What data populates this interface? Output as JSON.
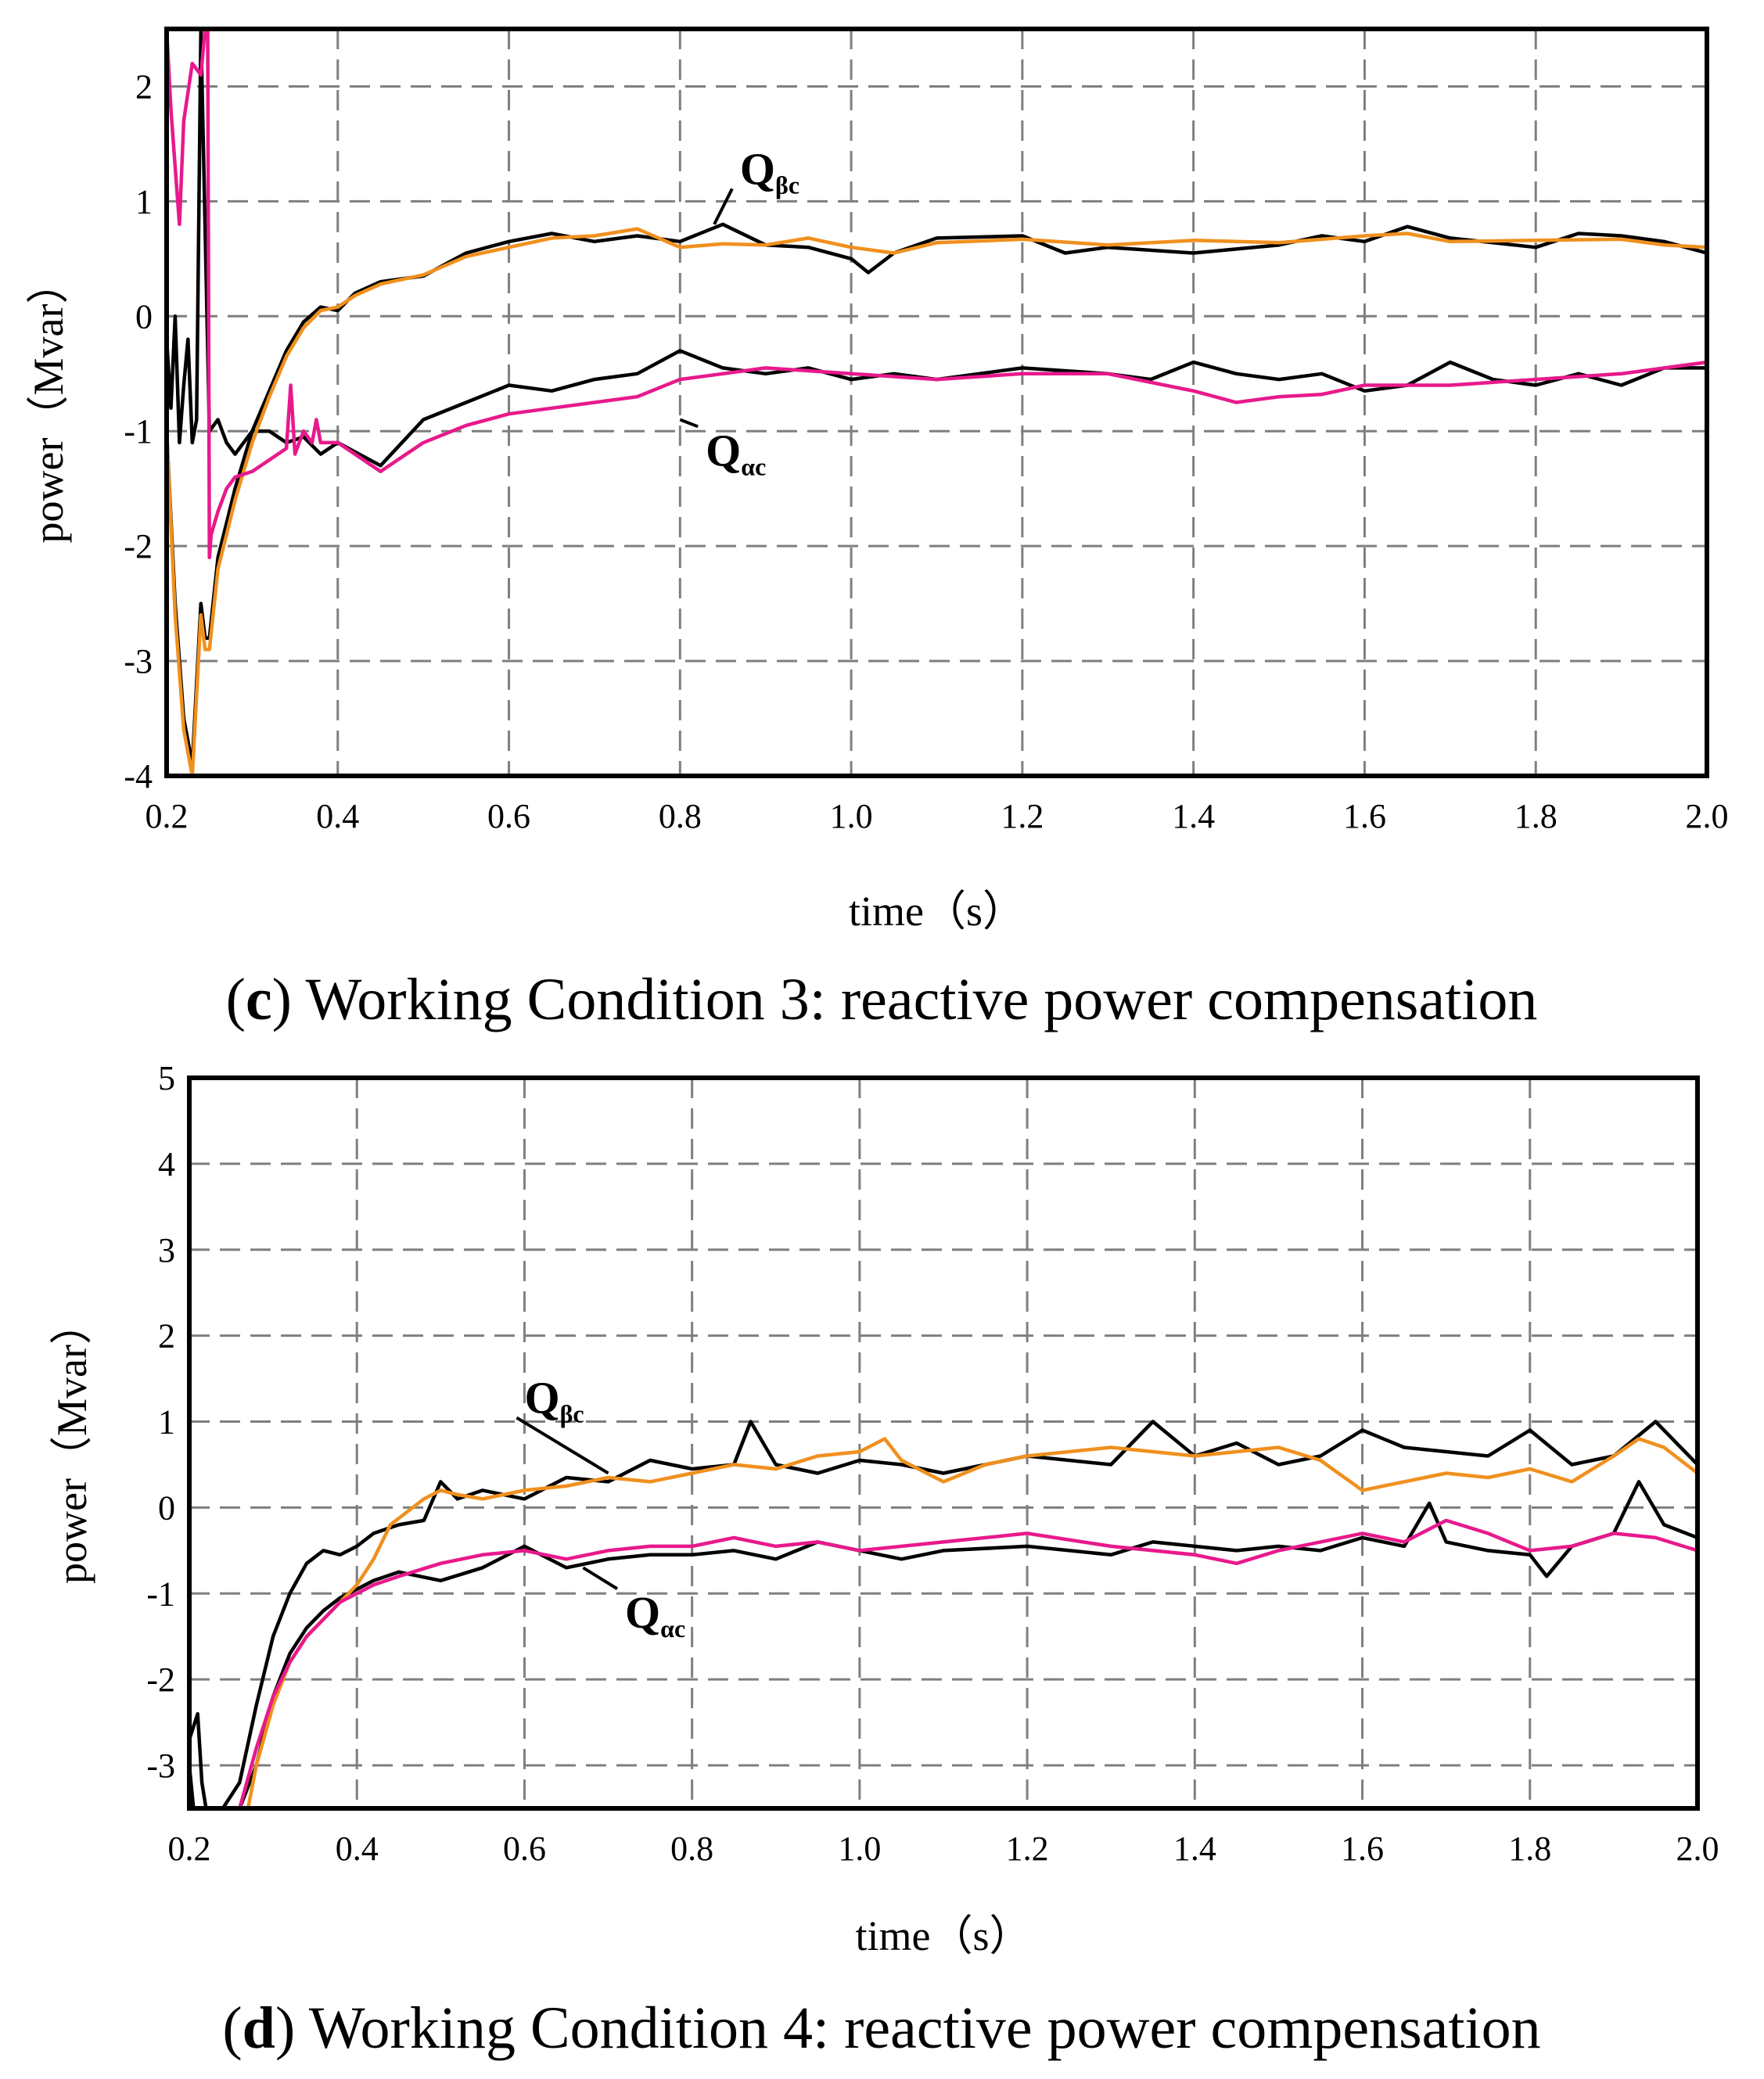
{
  "chart_data": [
    {
      "type": "line",
      "caption_label": "c",
      "caption": "Working Condition 3: reactive power compensation",
      "xlabel": "time（s）",
      "ylabel": "power（Mvar）",
      "xlim": [
        0.2,
        2.0
      ],
      "ylim": [
        -4,
        2.5
      ],
      "xticks": [
        "0.2",
        "0.4",
        "0.6",
        "0.8",
        "1.0",
        "1.2",
        "1.4",
        "1.6",
        "1.8",
        "2.0"
      ],
      "yticks": [
        "2",
        "1",
        "0",
        "-1",
        "-2",
        "-3",
        "-4"
      ],
      "grid": true,
      "annotations": [
        {
          "main": "Q",
          "sub": "βc",
          "x": 0.87,
          "y": 1.15,
          "tip_x": 0.84,
          "tip_y": 0.8
        },
        {
          "main": "Q",
          "sub": "αc",
          "x": 0.83,
          "y": -1.3,
          "tip_x": 0.8,
          "tip_y": -0.9
        }
      ],
      "series": [
        {
          "name": "Qβc",
          "color": "#f0901e",
          "x": [
            0.2,
            0.21,
            0.22,
            0.23,
            0.24,
            0.245,
            0.25,
            0.26,
            0.27,
            0.28,
            0.3,
            0.32,
            0.34,
            0.36,
            0.38,
            0.4,
            0.42,
            0.45,
            0.5,
            0.55,
            0.6,
            0.65,
            0.7,
            0.75,
            0.8,
            0.85,
            0.9,
            0.95,
            1.0,
            1.05,
            1.1,
            1.2,
            1.3,
            1.4,
            1.5,
            1.6,
            1.65,
            1.7,
            1.8,
            1.9,
            1.95,
            2.0
          ],
          "y": [
            -1.0,
            -2.6,
            -3.6,
            -4.0,
            -2.6,
            -2.9,
            -2.9,
            -2.2,
            -1.9,
            -1.6,
            -1.1,
            -0.7,
            -0.35,
            -0.1,
            0.05,
            0.08,
            0.18,
            0.28,
            0.36,
            0.52,
            0.6,
            0.68,
            0.7,
            0.76,
            0.6,
            0.63,
            0.62,
            0.68,
            0.6,
            0.55,
            0.64,
            0.67,
            0.62,
            0.66,
            0.64,
            0.7,
            0.72,
            0.65,
            0.66,
            0.67,
            0.62,
            0.6
          ]
        },
        {
          "name": "Qαc",
          "color": "#e8198c",
          "x": [
            0.2,
            0.205,
            0.21,
            0.215,
            0.22,
            0.23,
            0.24,
            0.245,
            0.248,
            0.25,
            0.252,
            0.26,
            0.27,
            0.28,
            0.3,
            0.32,
            0.34,
            0.345,
            0.35,
            0.36,
            0.37,
            0.375,
            0.38,
            0.4,
            0.42,
            0.45,
            0.5,
            0.55,
            0.6,
            0.65,
            0.7,
            0.75,
            0.8,
            0.85,
            0.9,
            1.0,
            1.1,
            1.2,
            1.3,
            1.4,
            1.45,
            1.5,
            1.55,
            1.6,
            1.7,
            1.8,
            1.9,
            2.0
          ],
          "y": [
            2.5,
            1.8,
            1.3,
            0.8,
            1.7,
            2.2,
            2.1,
            2.5,
            2.5,
            -2.1,
            -1.9,
            -1.7,
            -1.5,
            -1.4,
            -1.35,
            -1.25,
            -1.15,
            -0.6,
            -1.2,
            -1.0,
            -1.1,
            -0.9,
            -1.1,
            -1.1,
            -1.2,
            -1.35,
            -1.1,
            -0.95,
            -0.85,
            -0.8,
            -0.75,
            -0.7,
            -0.55,
            -0.5,
            -0.45,
            -0.5,
            -0.55,
            -0.5,
            -0.5,
            -0.65,
            -0.75,
            -0.7,
            -0.68,
            -0.6,
            -0.6,
            -0.55,
            -0.5,
            -0.4
          ]
        },
        {
          "name": "Qβc (reference)",
          "color": "#000000",
          "x": [
            0.2,
            0.21,
            0.22,
            0.23,
            0.24,
            0.245,
            0.25,
            0.26,
            0.27,
            0.28,
            0.3,
            0.32,
            0.34,
            0.36,
            0.38,
            0.4,
            0.42,
            0.45,
            0.5,
            0.55,
            0.6,
            0.65,
            0.7,
            0.75,
            0.8,
            0.85,
            0.9,
            0.95,
            1.0,
            1.02,
            1.05,
            1.1,
            1.2,
            1.25,
            1.3,
            1.4,
            1.5,
            1.55,
            1.6,
            1.65,
            1.7,
            1.8,
            1.85,
            1.9,
            1.95,
            2.0
          ],
          "y": [
            -1.0,
            -2.5,
            -3.5,
            -3.9,
            -2.5,
            -2.8,
            -2.8,
            -2.1,
            -1.8,
            -1.5,
            -1.0,
            -0.65,
            -0.3,
            -0.05,
            0.08,
            0.05,
            0.2,
            0.3,
            0.35,
            0.55,
            0.65,
            0.72,
            0.65,
            0.7,
            0.65,
            0.8,
            0.62,
            0.6,
            0.5,
            0.38,
            0.55,
            0.68,
            0.7,
            0.55,
            0.6,
            0.55,
            0.62,
            0.7,
            0.65,
            0.78,
            0.68,
            0.6,
            0.72,
            0.7,
            0.65,
            0.55
          ]
        },
        {
          "name": "Qαc (reference)",
          "color": "#000000",
          "x": [
            0.2,
            0.205,
            0.21,
            0.215,
            0.22,
            0.225,
            0.23,
            0.235,
            0.24,
            0.25,
            0.26,
            0.27,
            0.28,
            0.3,
            0.32,
            0.34,
            0.36,
            0.38,
            0.4,
            0.45,
            0.5,
            0.55,
            0.6,
            0.65,
            0.7,
            0.75,
            0.8,
            0.85,
            0.9,
            0.95,
            1.0,
            1.05,
            1.1,
            1.2,
            1.3,
            1.35,
            1.4,
            1.45,
            1.5,
            1.55,
            1.6,
            1.65,
            1.7,
            1.75,
            1.8,
            1.85,
            1.9,
            1.95,
            2.0
          ],
          "y": [
            -0.2,
            -0.8,
            0.0,
            -1.1,
            -0.6,
            -0.2,
            -1.1,
            -0.9,
            2.5,
            -1.0,
            -0.9,
            -1.1,
            -1.2,
            -1.0,
            -1.0,
            -1.1,
            -1.05,
            -1.2,
            -1.1,
            -1.3,
            -0.9,
            -0.75,
            -0.6,
            -0.65,
            -0.55,
            -0.5,
            -0.3,
            -0.45,
            -0.5,
            -0.45,
            -0.55,
            -0.5,
            -0.55,
            -0.45,
            -0.5,
            -0.55,
            -0.4,
            -0.5,
            -0.55,
            -0.5,
            -0.65,
            -0.6,
            -0.4,
            -0.55,
            -0.6,
            -0.5,
            -0.6,
            -0.45,
            -0.45
          ]
        }
      ]
    },
    {
      "type": "line",
      "caption_label": "d",
      "caption": "Working Condition 4: reactive power compensation",
      "xlabel": "time（s）",
      "ylabel": "power（Mvar）",
      "xlim": [
        0.2,
        2.0
      ],
      "ylim": [
        -3.5,
        5
      ],
      "xticks": [
        "0.2",
        "0.4",
        "0.6",
        "0.8",
        "1.0",
        "1.2",
        "1.4",
        "1.6",
        "1.8",
        "2.0"
      ],
      "yticks": [
        "5",
        "4",
        "3",
        "2",
        "1",
        "0",
        "-1",
        "-2",
        "-3"
      ],
      "grid": true,
      "annotations": [
        {
          "main": "Q",
          "sub": "βc",
          "x": 0.6,
          "y": 1.1,
          "tip_x": 0.7,
          "tip_y": 0.4
        },
        {
          "main": "Q",
          "sub": "αc",
          "x": 0.72,
          "y": -1.4,
          "tip_x": 0.67,
          "tip_y": -0.7
        }
      ],
      "series": [
        {
          "name": "Qβc",
          "color": "#f0901e",
          "x": [
            0.27,
            0.28,
            0.3,
            0.32,
            0.34,
            0.36,
            0.38,
            0.4,
            0.42,
            0.44,
            0.46,
            0.48,
            0.5,
            0.52,
            0.55,
            0.6,
            0.65,
            0.7,
            0.75,
            0.8,
            0.85,
            0.9,
            0.95,
            1.0,
            1.03,
            1.05,
            1.1,
            1.15,
            1.2,
            1.3,
            1.35,
            1.4,
            1.5,
            1.55,
            1.6,
            1.65,
            1.7,
            1.75,
            1.8,
            1.85,
            1.9,
            1.93,
            1.96,
            2.0
          ],
          "y": [
            -3.5,
            -3.0,
            -2.3,
            -1.8,
            -1.5,
            -1.3,
            -1.1,
            -0.9,
            -0.6,
            -0.2,
            -0.05,
            0.1,
            0.2,
            0.15,
            0.1,
            0.2,
            0.25,
            0.35,
            0.3,
            0.4,
            0.5,
            0.45,
            0.6,
            0.65,
            0.8,
            0.55,
            0.3,
            0.5,
            0.6,
            0.7,
            0.65,
            0.6,
            0.7,
            0.55,
            0.2,
            0.3,
            0.4,
            0.35,
            0.45,
            0.3,
            0.6,
            0.8,
            0.7,
            0.4
          ]
        },
        {
          "name": "Qαc",
          "color": "#e8198c",
          "x": [
            0.26,
            0.28,
            0.3,
            0.32,
            0.34,
            0.36,
            0.38,
            0.4,
            0.42,
            0.45,
            0.5,
            0.55,
            0.6,
            0.65,
            0.7,
            0.75,
            0.8,
            0.85,
            0.9,
            0.95,
            1.0,
            1.1,
            1.2,
            1.3,
            1.4,
            1.45,
            1.5,
            1.6,
            1.65,
            1.7,
            1.75,
            1.8,
            1.85,
            1.9,
            1.95,
            2.0
          ],
          "y": [
            -3.5,
            -2.8,
            -2.2,
            -1.8,
            -1.5,
            -1.3,
            -1.1,
            -1.0,
            -0.9,
            -0.8,
            -0.65,
            -0.55,
            -0.5,
            -0.6,
            -0.5,
            -0.45,
            -0.45,
            -0.35,
            -0.45,
            -0.4,
            -0.5,
            -0.4,
            -0.3,
            -0.45,
            -0.55,
            -0.65,
            -0.5,
            -0.3,
            -0.4,
            -0.15,
            -0.3,
            -0.5,
            -0.45,
            -0.3,
            -0.35,
            -0.5
          ]
        },
        {
          "name": "Qβc (reference)",
          "color": "#000000",
          "x": [
            0.2,
            0.21,
            0.215,
            0.22,
            0.24,
            0.26,
            0.28,
            0.3,
            0.32,
            0.34,
            0.36,
            0.38,
            0.4,
            0.42,
            0.45,
            0.48,
            0.5,
            0.52,
            0.55,
            0.6,
            0.65,
            0.7,
            0.75,
            0.8,
            0.85,
            0.87,
            0.9,
            0.95,
            1.0,
            1.05,
            1.1,
            1.15,
            1.2,
            1.3,
            1.35,
            1.4,
            1.45,
            1.5,
            1.55,
            1.6,
            1.65,
            1.7,
            1.75,
            1.8,
            1.85,
            1.9,
            1.95,
            2.0
          ],
          "y": [
            -2.7,
            -2.4,
            -3.2,
            -3.5,
            -3.5,
            -3.2,
            -2.3,
            -1.5,
            -1.0,
            -0.65,
            -0.5,
            -0.55,
            -0.45,
            -0.3,
            -0.2,
            -0.15,
            0.3,
            0.1,
            0.2,
            0.1,
            0.35,
            0.3,
            0.55,
            0.45,
            0.5,
            1.0,
            0.5,
            0.4,
            0.55,
            0.5,
            0.4,
            0.5,
            0.6,
            0.5,
            1.0,
            0.6,
            0.75,
            0.5,
            0.6,
            0.9,
            0.7,
            0.65,
            0.6,
            0.9,
            0.5,
            0.6,
            1.0,
            0.5
          ]
        },
        {
          "name": "Qαc (reference)",
          "color": "#000000",
          "x": [
            0.2,
            0.205,
            0.21,
            0.22,
            0.24,
            0.26,
            0.28,
            0.3,
            0.32,
            0.34,
            0.36,
            0.38,
            0.4,
            0.42,
            0.45,
            0.5,
            0.55,
            0.6,
            0.65,
            0.7,
            0.75,
            0.8,
            0.85,
            0.9,
            0.95,
            1.0,
            1.05,
            1.1,
            1.2,
            1.3,
            1.35,
            1.4,
            1.45,
            1.5,
            1.55,
            1.6,
            1.65,
            1.68,
            1.7,
            1.75,
            1.8,
            1.82,
            1.85,
            1.9,
            1.93,
            1.96,
            2.0
          ],
          "y": [
            -3.0,
            -3.5,
            -3.5,
            -3.5,
            -3.5,
            -3.5,
            -3.0,
            -2.2,
            -1.7,
            -1.4,
            -1.2,
            -1.05,
            -0.95,
            -0.85,
            -0.75,
            -0.85,
            -0.7,
            -0.45,
            -0.7,
            -0.6,
            -0.55,
            -0.55,
            -0.5,
            -0.6,
            -0.4,
            -0.5,
            -0.6,
            -0.5,
            -0.45,
            -0.55,
            -0.4,
            -0.45,
            -0.5,
            -0.45,
            -0.5,
            -0.35,
            -0.45,
            0.05,
            -0.4,
            -0.5,
            -0.55,
            -0.8,
            -0.45,
            -0.3,
            0.3,
            -0.2,
            -0.35
          ]
        }
      ]
    }
  ]
}
